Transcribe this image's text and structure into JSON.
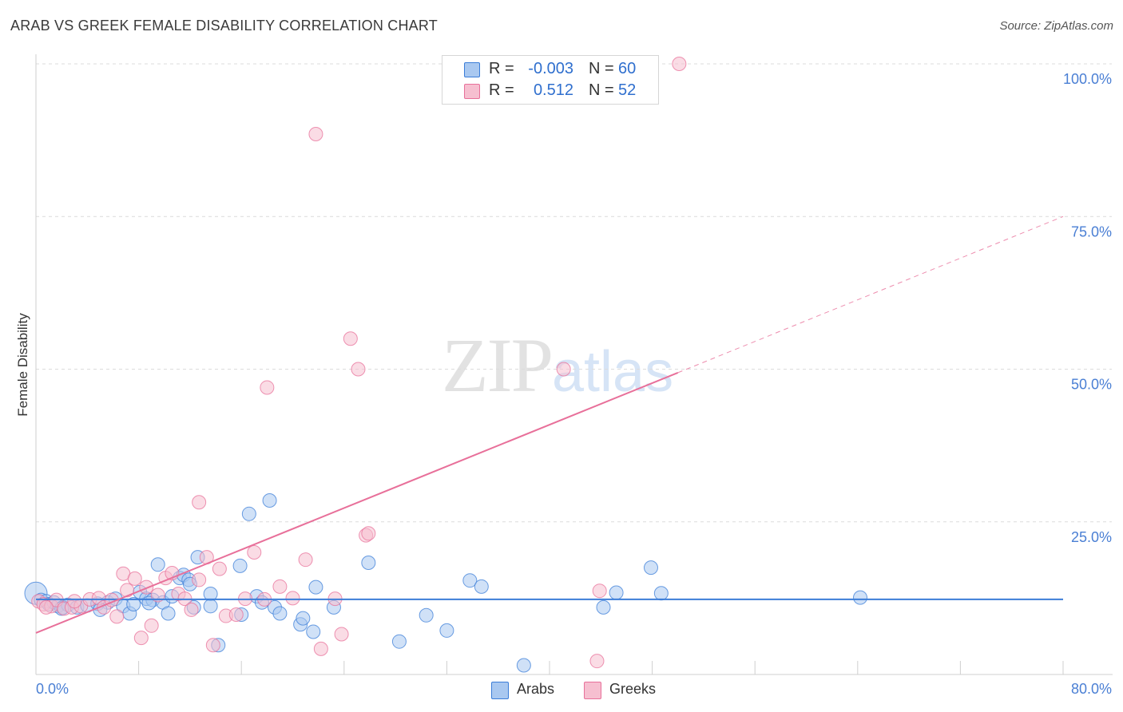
{
  "title": "ARAB VS GREEK FEMALE DISABILITY CORRELATION CHART",
  "source": "Source: ZipAtlas.com",
  "watermark": {
    "zip": "ZIP",
    "atlas": "atlas"
  },
  "colors": {
    "arabs": "#3b7dd8",
    "greeks": "#e8709a",
    "arabs_fill": "#a9c8f0",
    "greeks_fill": "#f6bfd0",
    "tick": "#4a7fd4"
  },
  "stats": [
    {
      "r_label": "R =",
      "r_value": "-0.003",
      "n_label": "N =",
      "n_value": "60",
      "color": "#a9c8f0",
      "border": "#3b7dd8"
    },
    {
      "r_label": "R =",
      "r_value": "0.512",
      "n_label": "N =",
      "n_value": "52",
      "color": "#f6bfd0",
      "border": "#e8709a"
    }
  ],
  "legend": [
    {
      "label": "Arabs",
      "color": "#a9c8f0",
      "border": "#3b7dd8"
    },
    {
      "label": "Greeks",
      "color": "#f6bfd0",
      "border": "#e8709a"
    }
  ],
  "chart_data": {
    "type": "scatter",
    "title": "ARAB VS GREEK FEMALE DISABILITY CORRELATION CHART",
    "xlabel": "",
    "ylabel": "Female Disability",
    "xlim": [
      0,
      80
    ],
    "ylim": [
      0,
      100
    ],
    "x_tick_labels": [
      "0.0%",
      "80.0%"
    ],
    "y_ticks": [
      25,
      50,
      75,
      100
    ],
    "y_tick_labels": [
      "25.0%",
      "50.0%",
      "75.0%",
      "100.0%"
    ],
    "grid": true,
    "legend_position": "bottom-center",
    "series": [
      {
        "name": "Arabs",
        "color": "#3b7dd8",
        "trend": {
          "x0": 0,
          "y0": 12.3,
          "x1": 80,
          "y1": 12.3,
          "dashed_from": null
        },
        "points": [
          [
            0.0,
            13.3
          ],
          [
            0.4,
            12.2
          ],
          [
            0.8,
            12.0
          ],
          [
            1.0,
            11.5
          ],
          [
            1.4,
            11.8
          ],
          [
            1.7,
            11.2
          ],
          [
            2.1,
            11.0
          ],
          [
            2.5,
            11.4
          ],
          [
            3.2,
            11.0
          ],
          [
            4.0,
            11.3
          ],
          [
            4.8,
            11.6
          ],
          [
            5.6,
            11.8
          ],
          [
            6.2,
            12.4
          ],
          [
            6.8,
            11.2
          ],
          [
            7.3,
            10.0
          ],
          [
            7.6,
            11.5
          ],
          [
            8.1,
            13.5
          ],
          [
            8.6,
            12.4
          ],
          [
            9.1,
            12.2
          ],
          [
            9.5,
            18.0
          ],
          [
            9.9,
            11.8
          ],
          [
            10.3,
            10.0
          ],
          [
            10.6,
            12.8
          ],
          [
            11.2,
            15.8
          ],
          [
            11.5,
            16.3
          ],
          [
            11.9,
            15.5
          ],
          [
            12.3,
            11.0
          ],
          [
            12.6,
            19.2
          ],
          [
            13.6,
            13.2
          ],
          [
            13.6,
            11.2
          ],
          [
            14.2,
            4.8
          ],
          [
            15.9,
            17.8
          ],
          [
            16.0,
            9.8
          ],
          [
            16.6,
            26.3
          ],
          [
            17.2,
            12.8
          ],
          [
            17.6,
            11.8
          ],
          [
            18.2,
            28.5
          ],
          [
            18.6,
            11.0
          ],
          [
            19.0,
            10.0
          ],
          [
            20.6,
            8.2
          ],
          [
            20.8,
            9.2
          ],
          [
            21.6,
            7.0
          ],
          [
            21.8,
            14.3
          ],
          [
            23.2,
            11.0
          ],
          [
            25.9,
            18.3
          ],
          [
            28.3,
            5.4
          ],
          [
            30.4,
            9.7
          ],
          [
            32.0,
            7.2
          ],
          [
            33.8,
            15.4
          ],
          [
            34.7,
            14.4
          ],
          [
            38.0,
            1.5
          ],
          [
            44.2,
            11.0
          ],
          [
            45.2,
            13.4
          ],
          [
            47.9,
            17.5
          ],
          [
            48.7,
            13.3
          ],
          [
            64.2,
            12.6
          ],
          [
            2.0,
            10.8
          ],
          [
            5.0,
            10.6
          ],
          [
            8.8,
            11.7
          ],
          [
            12.0,
            14.8
          ]
        ]
      },
      {
        "name": "Greeks",
        "color": "#e8709a",
        "trend": {
          "x0": 0,
          "y0": 6.8,
          "x1": 80,
          "y1": 75.0,
          "dashed_from": 50.0
        },
        "points": [
          [
            0.2,
            12.0
          ],
          [
            0.6,
            11.5
          ],
          [
            1.2,
            11.2
          ],
          [
            1.6,
            12.2
          ],
          [
            2.2,
            10.8
          ],
          [
            2.8,
            11.0
          ],
          [
            3.5,
            11.2
          ],
          [
            4.2,
            12.3
          ],
          [
            4.9,
            12.5
          ],
          [
            5.3,
            11.0
          ],
          [
            5.9,
            12.2
          ],
          [
            6.3,
            9.5
          ],
          [
            6.8,
            16.5
          ],
          [
            7.1,
            13.8
          ],
          [
            7.7,
            15.7
          ],
          [
            8.2,
            6.0
          ],
          [
            8.6,
            14.3
          ],
          [
            9.0,
            8.0
          ],
          [
            9.5,
            13.0
          ],
          [
            10.1,
            15.8
          ],
          [
            10.6,
            16.6
          ],
          [
            11.1,
            13.2
          ],
          [
            11.6,
            12.4
          ],
          [
            12.1,
            10.6
          ],
          [
            12.7,
            15.5
          ],
          [
            12.7,
            28.2
          ],
          [
            13.3,
            19.2
          ],
          [
            13.8,
            4.8
          ],
          [
            14.3,
            17.3
          ],
          [
            14.8,
            9.6
          ],
          [
            15.6,
            9.8
          ],
          [
            16.3,
            12.4
          ],
          [
            17.0,
            20.0
          ],
          [
            17.8,
            12.3
          ],
          [
            18.0,
            47.0
          ],
          [
            19.0,
            14.4
          ],
          [
            20.0,
            12.5
          ],
          [
            21.0,
            18.8
          ],
          [
            21.8,
            88.5
          ],
          [
            22.2,
            4.2
          ],
          [
            23.3,
            12.4
          ],
          [
            23.8,
            6.6
          ],
          [
            24.5,
            55.0
          ],
          [
            25.1,
            50.0
          ],
          [
            25.7,
            22.8
          ],
          [
            25.9,
            23.1
          ],
          [
            41.1,
            50.0
          ],
          [
            43.7,
            2.2
          ],
          [
            43.9,
            13.7
          ],
          [
            50.1,
            100.0
          ],
          [
            0.8,
            11.0
          ],
          [
            3.0,
            12.0
          ]
        ]
      }
    ]
  }
}
